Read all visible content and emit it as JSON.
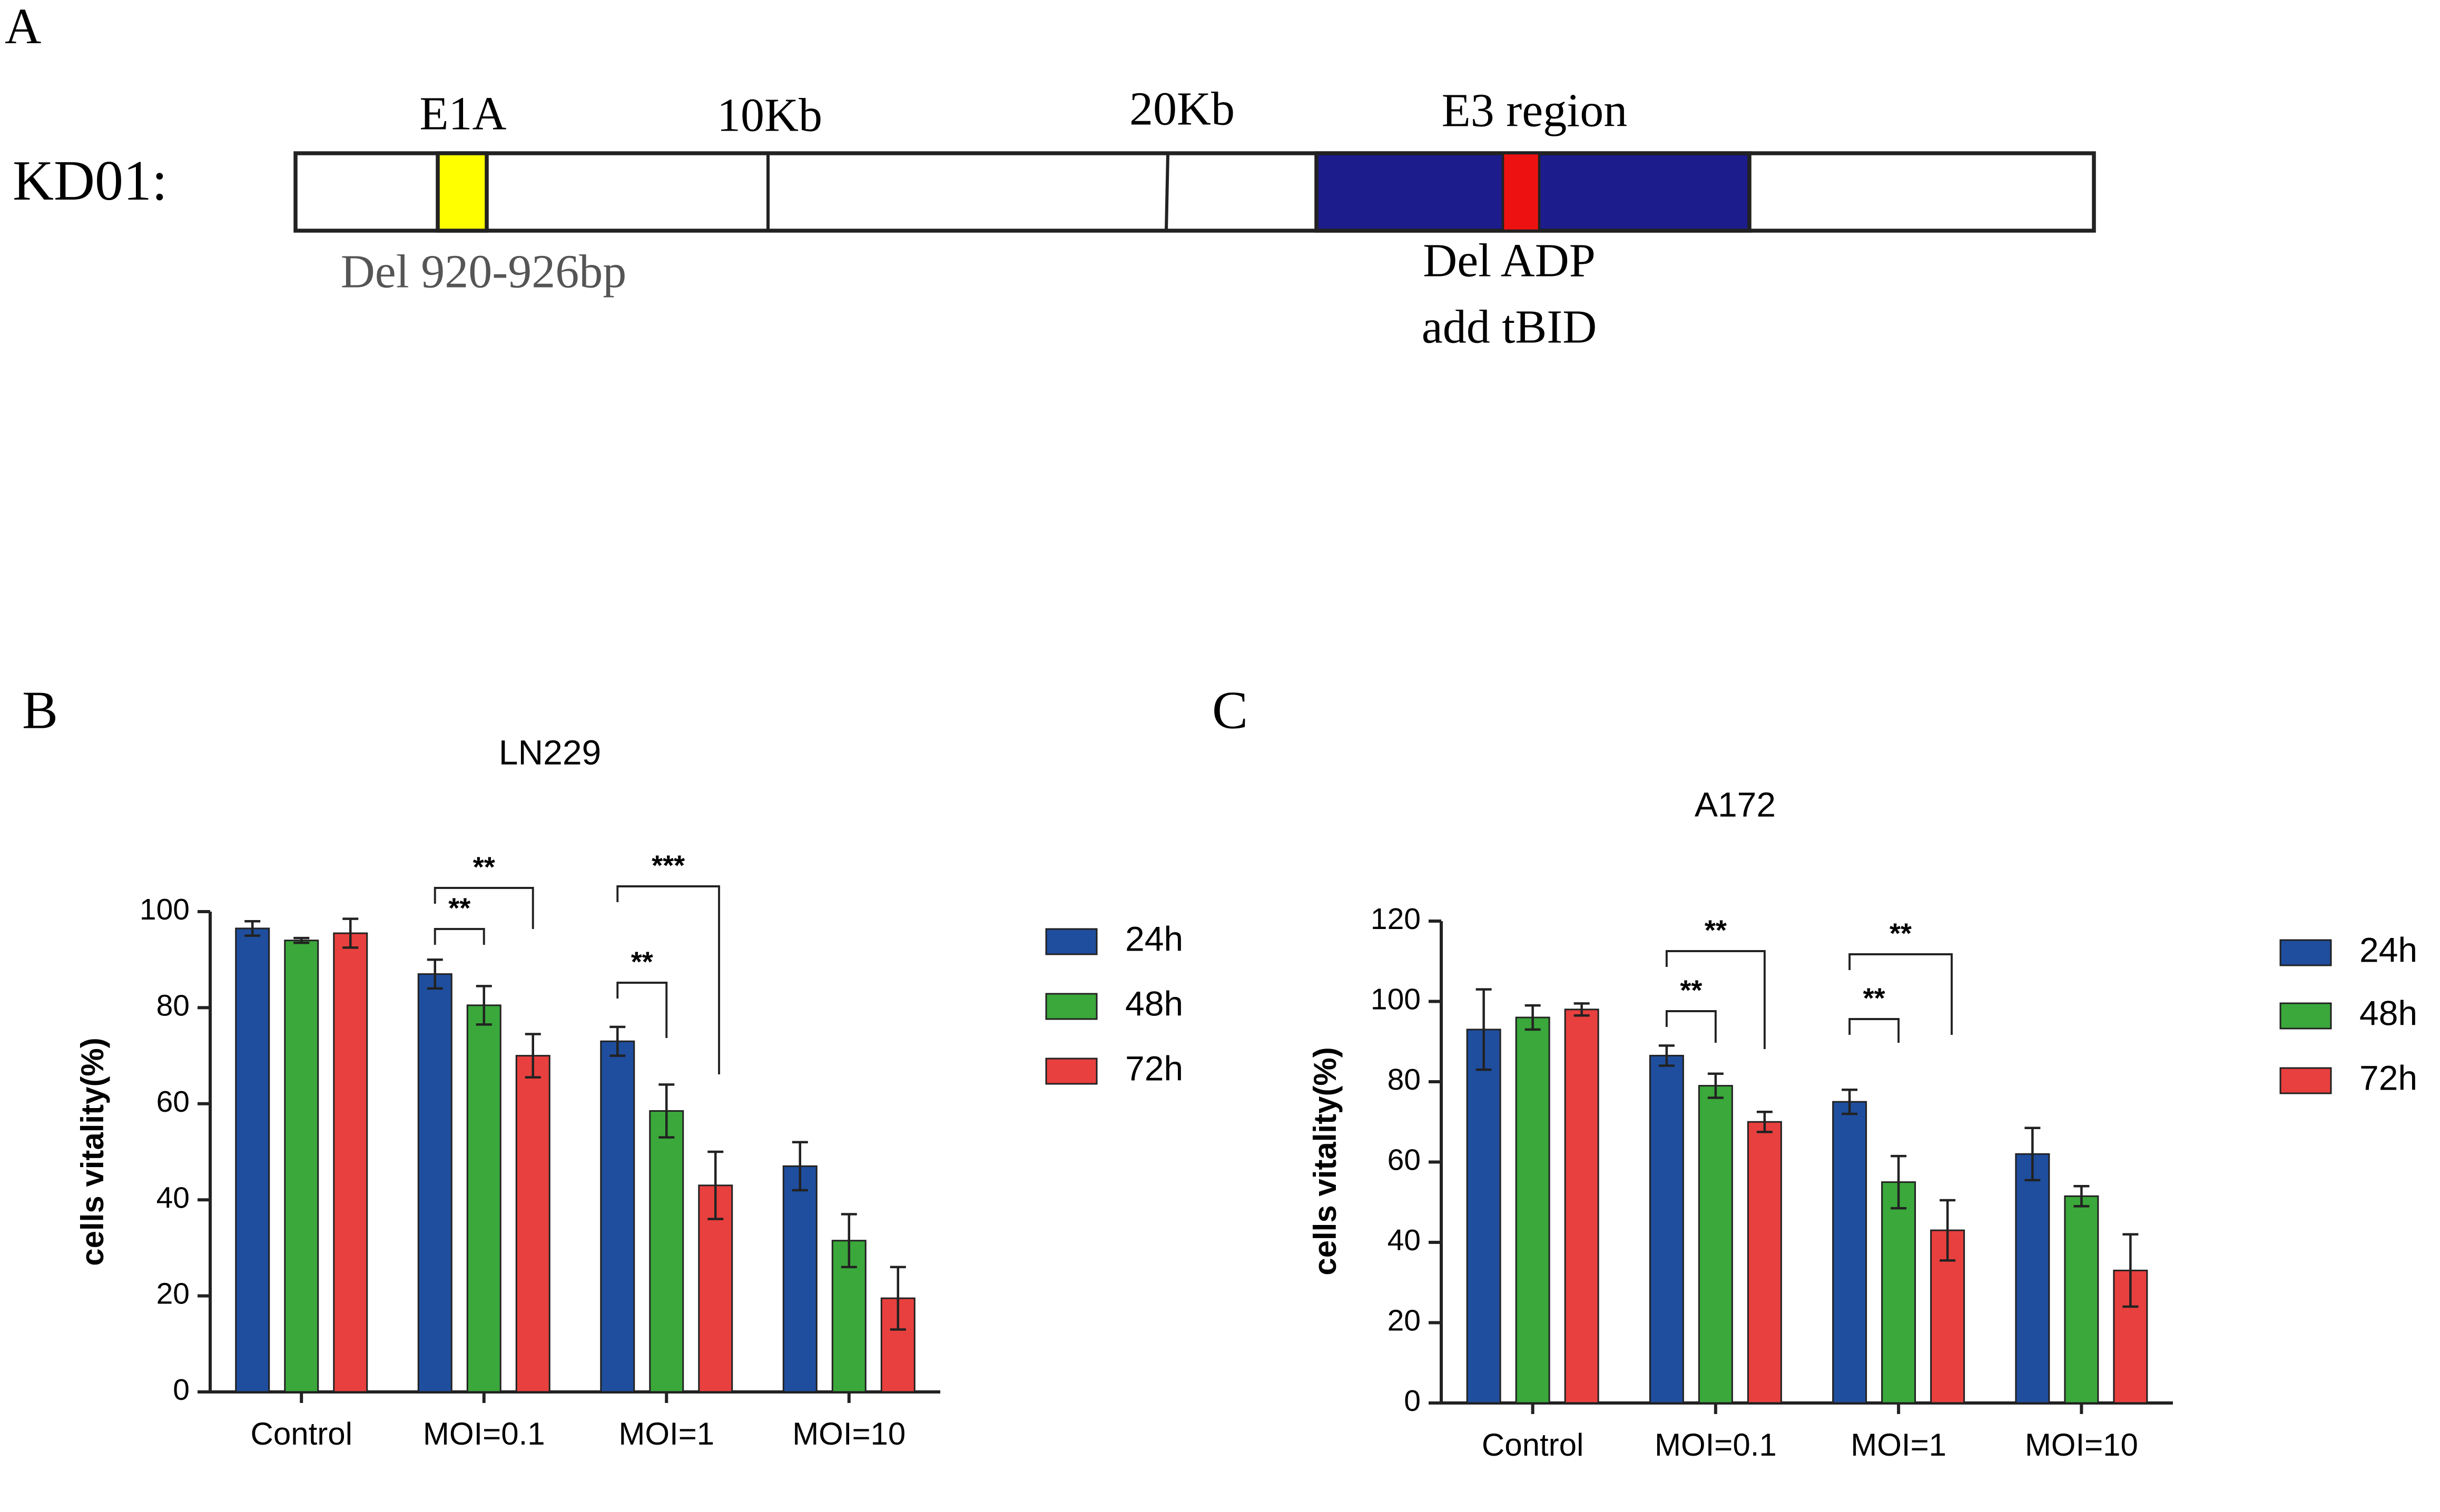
{
  "panels": [
    "A",
    "B",
    "C"
  ],
  "diagram": {
    "construct": "KD01:",
    "markers": [
      "E1A",
      "10Kb",
      "20Kb",
      "E3 region"
    ],
    "notes": [
      "Del 920-926bp",
      "Del ADP",
      "add tBID"
    ]
  },
  "chart_data": [
    {
      "type": "bar",
      "title": "LN229",
      "y_label": "cells vitality(%)",
      "categories": [
        "Control",
        "MOI=0.1",
        "MOI=1",
        "MOI=10"
      ],
      "series": [
        {
          "name": "24h",
          "color": "#1f4e9e",
          "values": [
            96.5,
            87,
            73,
            47
          ],
          "errors": [
            1.5,
            3,
            3,
            5
          ]
        },
        {
          "name": "48h",
          "color": "#3aa83a",
          "values": [
            94,
            80.5,
            58.5,
            31.5
          ],
          "errors": [
            0.5,
            4,
            5.5,
            5.5
          ]
        },
        {
          "name": "72h",
          "color": "#e8403e",
          "values": [
            95.5,
            70,
            43,
            19.5
          ],
          "errors": [
            3,
            4.5,
            7,
            6.5
          ]
        }
      ],
      "ylim": [
        0,
        100
      ],
      "yticks": [
        0,
        20,
        40,
        60,
        80,
        100
      ],
      "annotations": [
        "**",
        "**",
        "**",
        "***"
      ]
    },
    {
      "type": "bar",
      "title": "A172",
      "y_label": "cells vitality(%)",
      "categories": [
        "Control",
        "MOI=0.1",
        "MOI=1",
        "MOI=10"
      ],
      "series": [
        {
          "name": "24h",
          "color": "#1f4e9e",
          "values": [
            93,
            86.5,
            75,
            62
          ],
          "errors": [
            10,
            2.5,
            3,
            6.5
          ]
        },
        {
          "name": "48h",
          "color": "#3aa83a",
          "values": [
            96,
            79,
            55,
            51.5
          ],
          "errors": [
            3,
            3,
            6.5,
            2.5
          ]
        },
        {
          "name": "72h",
          "color": "#e8403e",
          "values": [
            98,
            70,
            43,
            33
          ],
          "errors": [
            1.5,
            2.5,
            7.5,
            9
          ]
        }
      ],
      "ylim": [
        0,
        120
      ],
      "yticks": [
        0,
        20,
        40,
        60,
        80,
        100,
        120
      ],
      "annotations": [
        "**",
        "**",
        "**",
        "**"
      ]
    }
  ]
}
